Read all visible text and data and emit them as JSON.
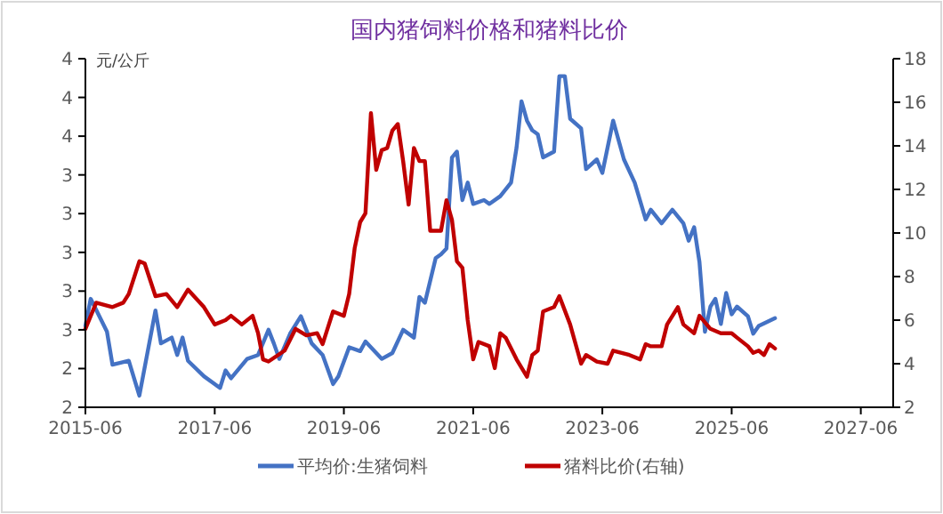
{
  "chart_data": {
    "type": "line",
    "title": "国内猪饲料价格和猪料比价",
    "ylabel": "元/公斤",
    "xlim": [
      "2015-06",
      "2027-12"
    ],
    "xticks": [
      {
        "value": "2015-06",
        "label": "2015-06"
      },
      {
        "value": "2017-06",
        "label": "2017-06"
      },
      {
        "value": "2019-06",
        "label": "2019-06"
      },
      {
        "value": "2021-06",
        "label": "2021-06"
      },
      {
        "value": "2023-06",
        "label": "2023-06"
      },
      {
        "value": "2025-06",
        "label": "2025-06"
      },
      {
        "value": "2027-06",
        "label": "2027-06"
      }
    ],
    "ylim": [
      2.2,
      4.0
    ],
    "yticks": [
      {
        "value": 2.2,
        "label": "2"
      },
      {
        "value": 2.4,
        "label": "2"
      },
      {
        "value": 2.6,
        "label": "3"
      },
      {
        "value": 2.8,
        "label": "3"
      },
      {
        "value": 3.0,
        "label": "3"
      },
      {
        "value": 3.2,
        "label": "3"
      },
      {
        "value": 3.4,
        "label": "3"
      },
      {
        "value": 3.6,
        "label": "4"
      },
      {
        "value": 3.8,
        "label": "4"
      },
      {
        "value": 4.0,
        "label": "4"
      }
    ],
    "y2lim": [
      2,
      18
    ],
    "y2ticks": [
      2,
      4,
      6,
      8,
      10,
      12,
      14,
      16,
      18
    ],
    "grid": false,
    "legend": "bottom",
    "series": [
      {
        "name": "平均价:生猪饲料",
        "color": "#4472c4",
        "x": [
          "2015-06",
          "2015-07",
          "2015-10",
          "2015-11",
          "2016-02",
          "2016-04",
          "2016-07",
          "2016-08",
          "2016-10",
          "2016-11",
          "2016-12",
          "2017-01",
          "2017-04",
          "2017-07",
          "2017-08",
          "2017-09",
          "2017-12",
          "2018-02",
          "2018-04",
          "2018-05",
          "2018-06",
          "2018-08",
          "2018-10",
          "2018-12",
          "2019-02",
          "2019-04",
          "2019-05",
          "2019-07",
          "2019-09",
          "2019-10",
          "2020-01",
          "2020-03",
          "2020-05",
          "2020-07",
          "2020-08",
          "2020-09",
          "2020-11",
          "2020-12",
          "2021-01",
          "2021-02",
          "2021-03",
          "2021-04",
          "2021-05",
          "2021-06",
          "2021-08",
          "2021-09",
          "2021-11",
          "2022-01",
          "2022-02",
          "2022-03",
          "2022-04",
          "2022-05",
          "2022-06",
          "2022-07",
          "2022-09",
          "2022-10",
          "2022-11",
          "2022-12",
          "2023-02",
          "2023-03",
          "2023-05",
          "2023-06",
          "2023-08",
          "2023-10",
          "2023-12",
          "2024-02",
          "2024-03",
          "2024-05",
          "2024-07",
          "2024-09",
          "2024-10",
          "2024-11",
          "2024-12",
          "2025-01",
          "2025-02",
          "2025-03",
          "2025-04",
          "2025-05",
          "2025-06",
          "2025-07",
          "2025-09",
          "2025-10",
          "2025-11",
          "2026-02"
        ],
        "values": [
          2.62,
          2.76,
          2.59,
          2.42,
          2.44,
          2.26,
          2.7,
          2.53,
          2.56,
          2.47,
          2.56,
          2.44,
          2.36,
          2.3,
          2.39,
          2.35,
          2.45,
          2.47,
          2.6,
          2.53,
          2.45,
          2.58,
          2.67,
          2.53,
          2.47,
          2.32,
          2.36,
          2.51,
          2.49,
          2.54,
          2.45,
          2.48,
          2.6,
          2.56,
          2.77,
          2.74,
          2.97,
          2.99,
          3.02,
          3.49,
          3.52,
          3.27,
          3.36,
          3.25,
          3.27,
          3.25,
          3.29,
          3.36,
          3.54,
          3.78,
          3.68,
          3.63,
          3.61,
          3.49,
          3.52,
          3.91,
          3.91,
          3.69,
          3.64,
          3.43,
          3.48,
          3.41,
          3.68,
          3.48,
          3.36,
          3.17,
          3.22,
          3.15,
          3.22,
          3.15,
          3.06,
          3.13,
          2.95,
          2.59,
          2.72,
          2.76,
          2.63,
          2.79,
          2.68,
          2.72,
          2.67,
          2.58,
          2.62,
          2.66
        ]
      },
      {
        "name": "猪料比价(右轴)",
        "color": "#c00000",
        "axis": "y2",
        "x": [
          "2015-06",
          "2015-08",
          "2015-11",
          "2016-01",
          "2016-02",
          "2016-04",
          "2016-05",
          "2016-07",
          "2016-09",
          "2016-11",
          "2017-01",
          "2017-04",
          "2017-06",
          "2017-08",
          "2017-09",
          "2017-11",
          "2018-01",
          "2018-02",
          "2018-03",
          "2018-04",
          "2018-07",
          "2018-09",
          "2018-11",
          "2019-01",
          "2019-02",
          "2019-04",
          "2019-06",
          "2019-07",
          "2019-08",
          "2019-09",
          "2019-10",
          "2019-11",
          "2019-12",
          "2020-01",
          "2020-02",
          "2020-03",
          "2020-04",
          "2020-05",
          "2020-06",
          "2020-07",
          "2020-08",
          "2020-09",
          "2020-10",
          "2020-12",
          "2021-01",
          "2021-02",
          "2021-03",
          "2021-04",
          "2021-05",
          "2021-06",
          "2021-07",
          "2021-09",
          "2021-10",
          "2021-11",
          "2021-12",
          "2022-02",
          "2022-04",
          "2022-05",
          "2022-06",
          "2022-07",
          "2022-09",
          "2022-10",
          "2022-12",
          "2023-02",
          "2023-03",
          "2023-05",
          "2023-07",
          "2023-08",
          "2023-11",
          "2024-01",
          "2024-02",
          "2024-03",
          "2024-05",
          "2024-06",
          "2024-08",
          "2024-09",
          "2024-11",
          "2024-12",
          "2025-02",
          "2025-04",
          "2025-06",
          "2025-07",
          "2025-09",
          "2025-10",
          "2025-11",
          "2025-12",
          "2026-01",
          "2026-02"
        ],
        "values": [
          5.6,
          6.8,
          6.6,
          6.8,
          7.2,
          8.7,
          8.6,
          7.1,
          7.2,
          6.6,
          7.4,
          6.6,
          5.8,
          6.0,
          6.2,
          5.8,
          6.2,
          5.4,
          4.2,
          4.1,
          4.6,
          5.6,
          5.3,
          5.4,
          4.9,
          6.4,
          6.2,
          7.2,
          9.3,
          10.5,
          10.9,
          15.5,
          12.9,
          13.8,
          13.9,
          14.7,
          15.0,
          13.3,
          11.3,
          13.9,
          13.3,
          13.3,
          10.1,
          10.1,
          11.5,
          10.6,
          8.7,
          8.4,
          6.0,
          4.2,
          5.0,
          4.8,
          3.8,
          5.4,
          5.2,
          4.2,
          3.4,
          4.4,
          4.6,
          6.4,
          6.6,
          7.1,
          5.8,
          4.0,
          4.4,
          4.1,
          4.0,
          4.6,
          4.4,
          4.2,
          4.9,
          4.8,
          4.8,
          5.8,
          6.6,
          5.8,
          5.4,
          6.2,
          5.6,
          5.4,
          5.4,
          5.2,
          4.8,
          4.5,
          4.6,
          4.4,
          4.9,
          4.7
        ]
      }
    ]
  }
}
